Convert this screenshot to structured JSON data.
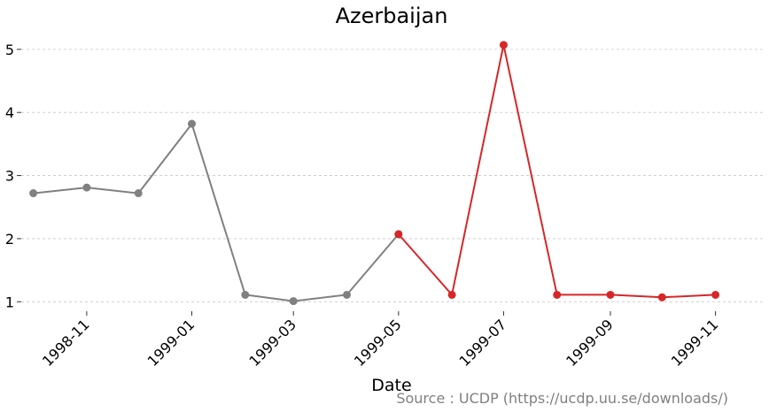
{
  "chart_data": {
    "type": "line",
    "title": "Azerbaijan",
    "xlabel": "Date",
    "ylabel": "",
    "source": "Source : UCDP (https://ucdp.uu.se/downloads/)",
    "ylim": [
      0.85,
      5.25
    ],
    "yticks": [
      1,
      2,
      3,
      4,
      5
    ],
    "xlim": [
      "1998-09-24",
      "1999-11-30"
    ],
    "xticks": [
      "1998-11",
      "1999-01",
      "1999-03",
      "1999-05",
      "1999-07",
      "1999-09",
      "1999-11"
    ],
    "grid": "horizontal",
    "series": [
      {
        "color": "#808080",
        "x": [
          "1998-10-01",
          "1998-11-01",
          "1998-12-01",
          "1999-01-01",
          "1999-02-01",
          "1999-03-01",
          "1999-04-01",
          "1999-05-01"
        ],
        "y": [
          2.72,
          2.81,
          2.72,
          3.82,
          1.11,
          1.01,
          1.11,
          2.07
        ]
      },
      {
        "color": "#d62728",
        "x": [
          "1999-05-01",
          "1999-06-01",
          "1999-07-01",
          "1999-08-01",
          "1999-09-01",
          "1999-10-01",
          "1999-11-01"
        ],
        "y": [
          2.07,
          1.11,
          5.07,
          1.11,
          1.11,
          1.07,
          1.11
        ]
      }
    ]
  }
}
